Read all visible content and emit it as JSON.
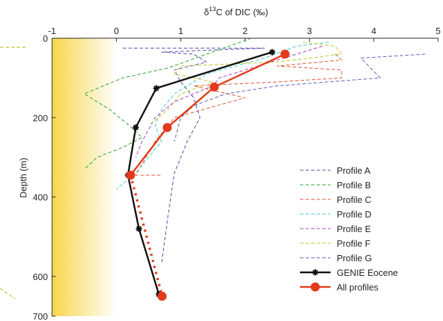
{
  "chart_data": {
    "type": "line",
    "xlabel": {
      "prefix": "δ",
      "sup": "13",
      "rest": "C of DIC (‰)"
    },
    "ylabel": "Depth (m)",
    "xlim": [
      -1,
      5
    ],
    "ylim": [
      700,
      0
    ],
    "x_ticks": [
      -1,
      0,
      1,
      2,
      3,
      4,
      5
    ],
    "y_ticks": [
      0,
      200,
      400,
      600,
      700
    ],
    "shaded_region": {
      "x": [
        -1,
        0
      ],
      "color": "#f7d64a"
    },
    "series": [
      {
        "name": "Profile A",
        "color": "#4a4aa8",
        "style": "dashed",
        "points": [
          [
            0.1,
            25
          ],
          [
            2.3,
            25
          ],
          [
            1.5,
            30
          ],
          [
            0.7,
            35
          ],
          [
            1.2,
            40
          ],
          [
            1.4,
            60
          ],
          [
            0.9,
            80
          ],
          [
            1.0,
            110
          ],
          [
            1.2,
            150
          ],
          [
            1.3,
            200
          ],
          [
            1.1,
            260
          ],
          [
            0.9,
            340
          ],
          [
            0.8,
            450
          ],
          [
            0.7,
            570
          ]
        ]
      },
      {
        "name": "Profile B",
        "color": "#2e9e2e",
        "style": "dashed",
        "points": [
          [
            2.1,
            0
          ],
          [
            1.4,
            40
          ],
          [
            0.8,
            75
          ],
          [
            0.1,
            100
          ],
          [
            -0.5,
            140
          ],
          [
            -0.1,
            180
          ],
          [
            0.2,
            220
          ],
          [
            0.4,
            250
          ],
          [
            0.1,
            275
          ],
          [
            -0.3,
            300
          ],
          [
            -0.5,
            330
          ]
        ]
      },
      {
        "name": "Profile C",
        "color": "#e05030",
        "style": "dashed",
        "points": [
          [
            3.4,
            40
          ],
          [
            3.5,
            55
          ],
          [
            2.5,
            70
          ],
          [
            3.5,
            80
          ],
          [
            3.5,
            100
          ],
          [
            2.5,
            110
          ],
          [
            1.2,
            120
          ],
          [
            2.0,
            150
          ],
          [
            0.9,
            200
          ],
          [
            0.6,
            260
          ],
          [
            0.3,
            345
          ],
          [
            0.7,
            345
          ]
        ]
      },
      {
        "name": "Profile D",
        "color": "#3fc7c0",
        "style": "dashed",
        "points": [
          [
            3.3,
            10
          ],
          [
            2.8,
            20
          ],
          [
            2.3,
            50
          ],
          [
            1.4,
            90
          ],
          [
            0.9,
            140
          ],
          [
            0.7,
            180
          ],
          [
            0.6,
            220
          ],
          [
            0.7,
            260
          ],
          [
            0.5,
            300
          ],
          [
            0.3,
            340
          ],
          [
            0.0,
            380
          ]
        ]
      },
      {
        "name": "Profile E",
        "color": "#b03cc0",
        "style": "dashed",
        "points": [
          [
            3.2,
            20
          ],
          [
            2.8,
            40
          ],
          [
            2.0,
            80
          ],
          [
            1.6,
            100
          ],
          [
            1.5,
            120
          ],
          [
            1.2,
            140
          ],
          [
            0.9,
            160
          ],
          [
            0.6,
            200
          ],
          [
            0.4,
            260
          ],
          [
            0.3,
            300
          ]
        ]
      },
      {
        "name": "Profile F",
        "color": "#c2c42c",
        "style": "dashed",
        "points": [
          [
            2.9,
            10
          ],
          [
            3.4,
            20
          ],
          [
            3.5,
            40
          ],
          [
            2.5,
            60
          ],
          [
            1.0,
            70
          ],
          [
            0.9,
            90
          ],
          [
            1.5,
            110
          ],
          [
            1.0,
            140
          ],
          [
            0.8,
            180
          ],
          [
            0.5,
            220
          ]
        ]
      },
      {
        "name": "Profile G",
        "color": "#5a5ab8",
        "style": "dashed",
        "points": [
          [
            4.8,
            40
          ],
          [
            3.8,
            50
          ],
          [
            4.1,
            100
          ],
          [
            2.5,
            120
          ],
          [
            1.7,
            140
          ],
          [
            1.2,
            170
          ],
          [
            1.0,
            200
          ],
          [
            0.9,
            260
          ]
        ]
      },
      {
        "name": "GENIE Eocene",
        "color": "#111111",
        "style": "solid",
        "marker": "asterisk",
        "points": [
          [
            2.42,
            35
          ],
          [
            0.62,
            126
          ],
          [
            0.3,
            225
          ],
          [
            0.18,
            345
          ],
          [
            0.35,
            480
          ],
          [
            0.66,
            645
          ]
        ]
      },
      {
        "name": "All profiles",
        "color": "#e23a1a",
        "style": "solid",
        "marker": "circle",
        "dotted_after": 345,
        "points": [
          [
            2.62,
            40
          ],
          [
            1.52,
            123
          ],
          [
            0.79,
            225
          ],
          [
            0.22,
            345
          ],
          [
            0.71,
            650
          ]
        ]
      }
    ],
    "legend": {
      "position": "bottom-right",
      "entries": [
        "Profile A",
        "Profile B",
        "Profile C",
        "Profile D",
        "Profile E",
        "Profile F",
        "Profile G",
        "GENIE Eocene",
        "All profiles"
      ]
    }
  }
}
